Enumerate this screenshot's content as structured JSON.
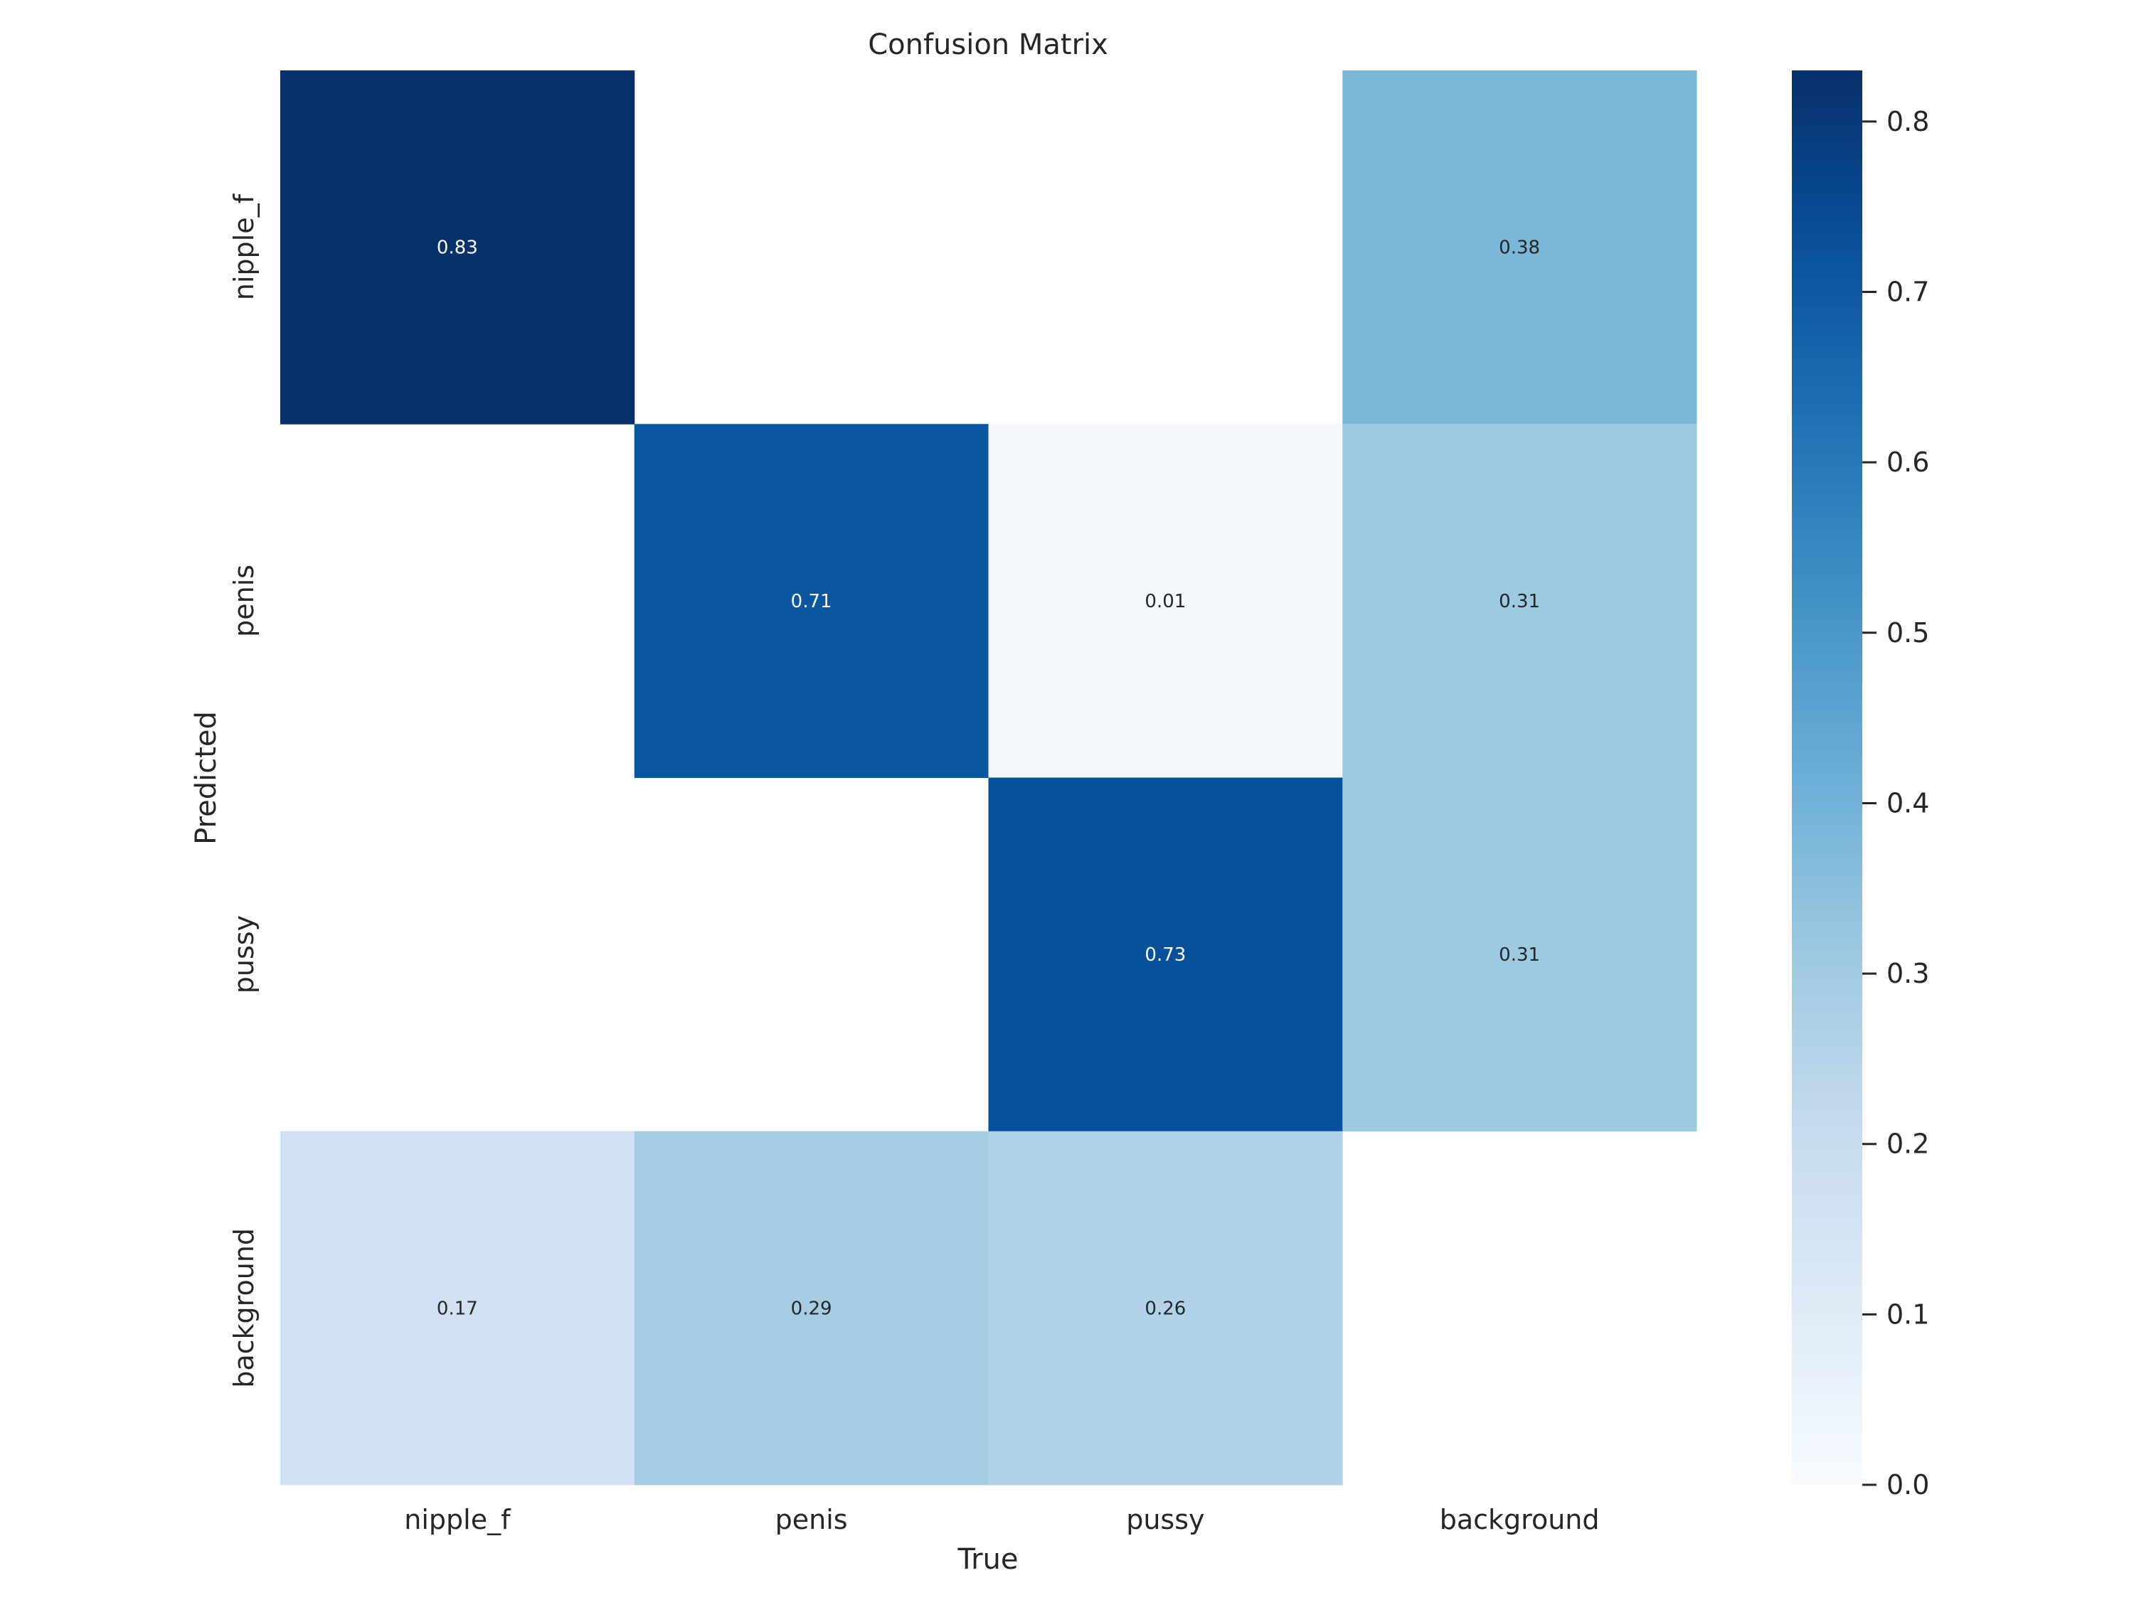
{
  "chart_data": {
    "type": "heatmap",
    "title": "Confusion Matrix",
    "xlabel": "True",
    "ylabel": "Predicted",
    "x_categories": [
      "nipple_f",
      "penis",
      "pussy",
      "background"
    ],
    "y_categories": [
      "nipple_f",
      "penis",
      "pussy",
      "background"
    ],
    "values": [
      [
        0.83,
        null,
        null,
        0.38
      ],
      [
        null,
        0.71,
        0.01,
        0.31
      ],
      [
        null,
        null,
        0.73,
        0.31
      ],
      [
        0.17,
        0.29,
        0.26,
        null
      ]
    ],
    "colormap": "Blues",
    "colorbar": {
      "range": [
        0.0,
        0.83
      ],
      "ticks": [
        "0.0",
        "0.1",
        "0.2",
        "0.3",
        "0.4",
        "0.5",
        "0.6",
        "0.7",
        "0.8"
      ]
    },
    "grid": false
  }
}
